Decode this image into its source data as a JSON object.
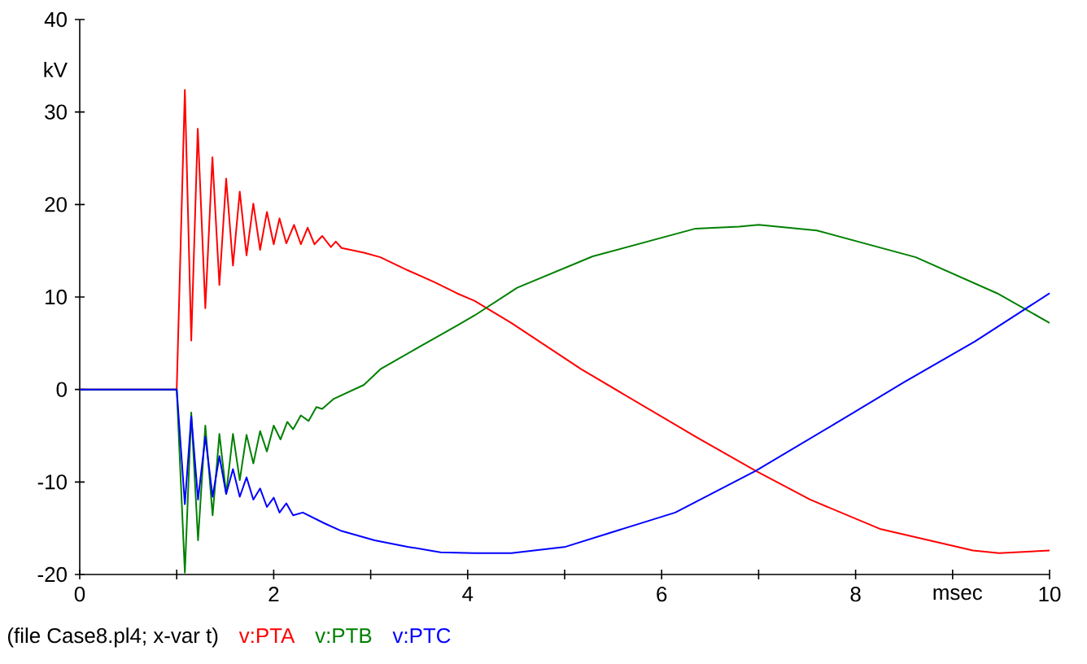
{
  "chart_data": {
    "type": "line",
    "xlabel": "msec",
    "ylabel": "kV",
    "annotations": [
      "(file Case8.pl4; x-var t)"
    ],
    "legend": "bottom left",
    "grid": false,
    "marker": "none",
    "line_style": "solid",
    "xlim": [
      0,
      10
    ],
    "ylim": [
      -20,
      40
    ],
    "xticks": [
      0,
      {
        "value": 1,
        "label": null
      },
      2,
      {
        "value": 3,
        "label": null
      },
      4,
      {
        "value": 5,
        "label": null
      },
      6,
      {
        "value": 7,
        "label": null
      },
      8,
      {
        "value": 9,
        "label": null
      },
      10
    ],
    "yticks": [
      -20,
      -10,
      0,
      10,
      20,
      30,
      40
    ],
    "series": [
      {
        "name": "v:PTA",
        "color": "#ff0000",
        "x": [
          0,
          1.0,
          1.084,
          1.15,
          1.217,
          1.295,
          1.368,
          1.44,
          1.51,
          1.58,
          1.65,
          1.72,
          1.79,
          1.86,
          1.93,
          2.0,
          2.06,
          2.13,
          2.21,
          2.28,
          2.35,
          2.42,
          2.5,
          2.59,
          2.64,
          2.7,
          2.93,
          3.1,
          3.38,
          3.66,
          3.89,
          4.07,
          4.45,
          5.17,
          6.35,
          6.97,
          7.53,
          8.26,
          9.21,
          9.48,
          10.0
        ],
        "values": [
          0,
          0,
          32.4,
          5.3,
          28.2,
          8.8,
          25.1,
          11.3,
          22.8,
          13.4,
          21.4,
          14.5,
          20.1,
          15.1,
          19.2,
          15.7,
          18.5,
          15.8,
          17.8,
          15.7,
          17.5,
          15.7,
          16.6,
          15.4,
          16.0,
          15.3,
          14.8,
          14.3,
          12.9,
          11.6,
          10.4,
          9.6,
          7.2,
          2.2,
          -5.1,
          -8.8,
          -11.9,
          -15.1,
          -17.4,
          -17.7,
          -17.4
        ]
      },
      {
        "name": "v:PTB",
        "color": "#008000",
        "x": [
          0,
          1.0,
          1.084,
          1.15,
          1.22,
          1.295,
          1.37,
          1.44,
          1.51,
          1.58,
          1.65,
          1.72,
          1.79,
          1.86,
          1.93,
          2.0,
          2.07,
          2.14,
          2.2,
          2.28,
          2.36,
          2.44,
          2.5,
          2.62,
          2.93,
          3.1,
          3.5,
          3.89,
          4.07,
          4.51,
          5.29,
          6.35,
          6.8,
          7.0,
          7.6,
          8.62,
          9.46,
          10.0
        ],
        "values": [
          0,
          0,
          -19.8,
          -2.5,
          -16.3,
          -3.9,
          -13.6,
          -4.8,
          -11.3,
          -4.8,
          -9.8,
          -4.9,
          -8.0,
          -4.5,
          -6.7,
          -3.9,
          -5.4,
          -3.5,
          -4.3,
          -2.8,
          -3.4,
          -1.9,
          -2.1,
          -1.0,
          0.5,
          2.2,
          4.6,
          6.9,
          8.0,
          11.0,
          14.4,
          17.4,
          17.6,
          17.8,
          17.2,
          14.3,
          10.4,
          7.2
        ]
      },
      {
        "name": "v:PTC",
        "color": "#0000ff",
        "x": [
          0,
          1.0,
          1.084,
          1.15,
          1.22,
          1.295,
          1.37,
          1.44,
          1.51,
          1.58,
          1.65,
          1.72,
          1.79,
          1.86,
          1.93,
          2.0,
          2.06,
          2.13,
          2.2,
          2.3,
          2.53,
          2.7,
          3.04,
          3.38,
          3.72,
          4.07,
          4.45,
          5.01,
          6.14,
          6.97,
          7.82,
          8.5,
          9.23,
          10.0
        ],
        "values": [
          0,
          0,
          -12.4,
          -2.9,
          -11.9,
          -5.1,
          -11.6,
          -7.2,
          -11.3,
          -8.6,
          -11.6,
          -9.5,
          -11.9,
          -10.7,
          -12.7,
          -11.7,
          -13.3,
          -12.3,
          -13.6,
          -13.3,
          -14.5,
          -15.3,
          -16.3,
          -17.0,
          -17.6,
          -17.7,
          -17.7,
          -17.0,
          -13.3,
          -8.8,
          -3.5,
          0.8,
          5.2,
          10.4
        ]
      }
    ]
  }
}
